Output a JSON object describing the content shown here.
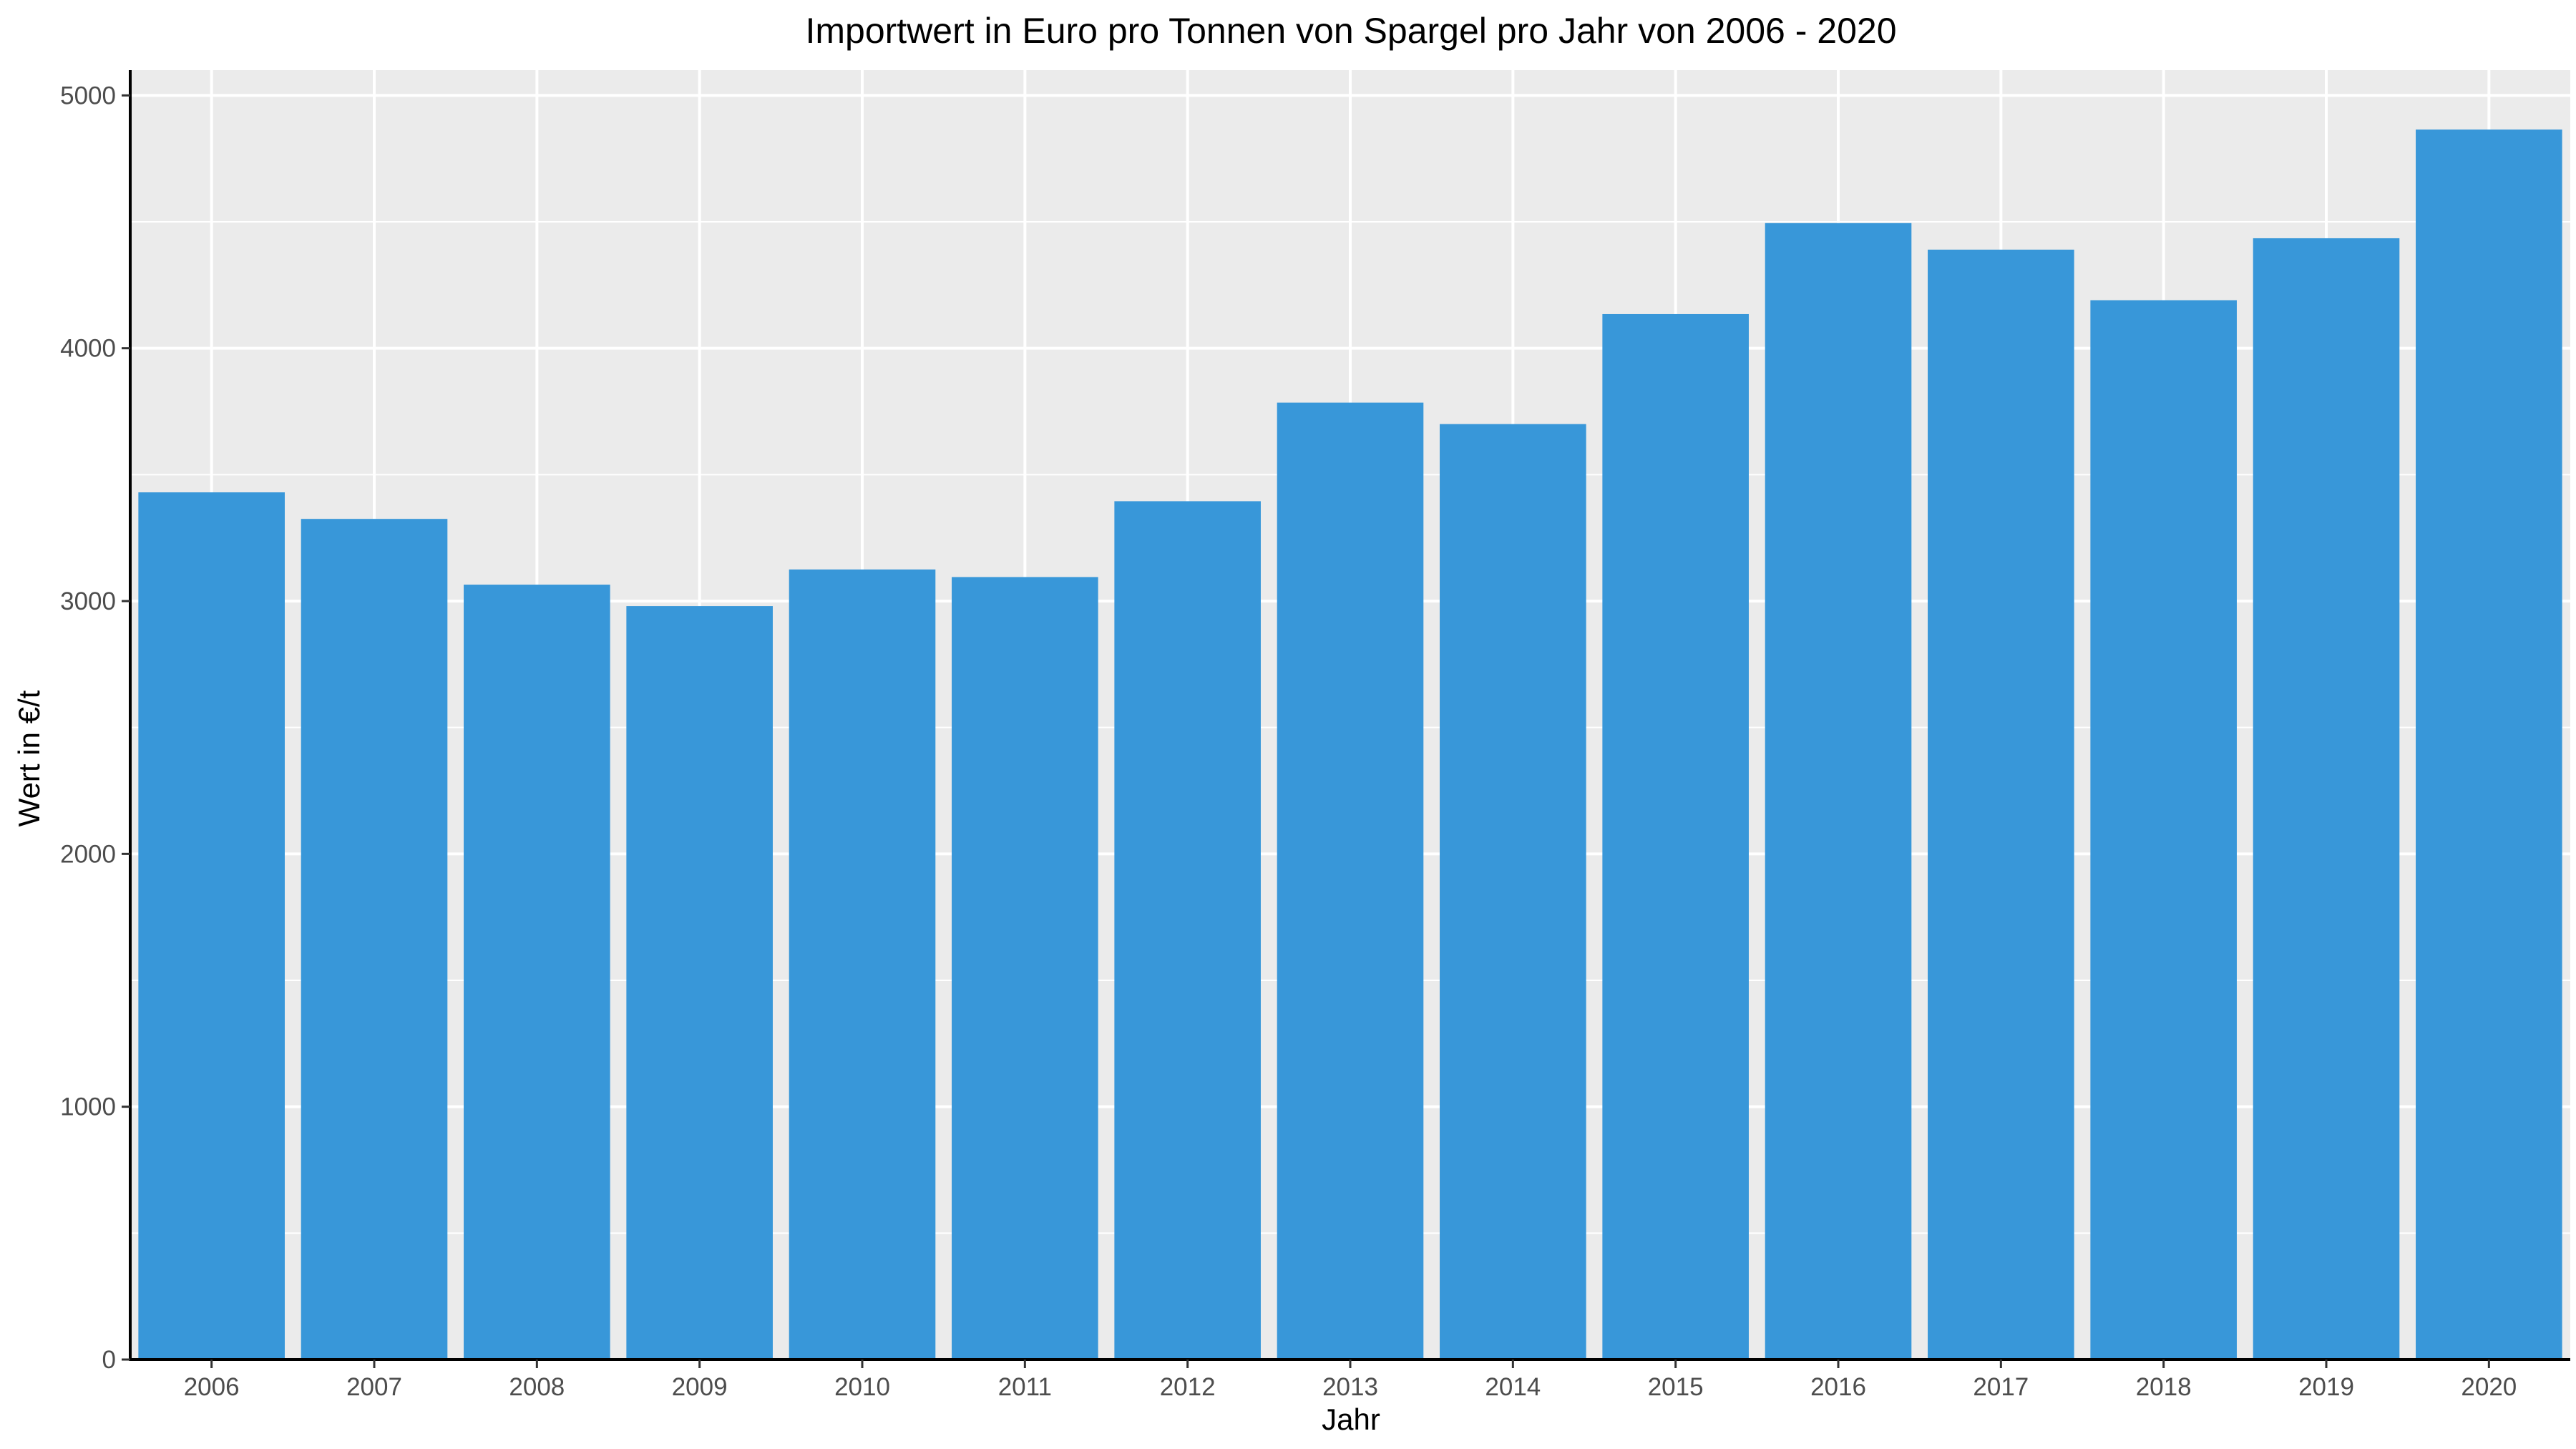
{
  "chart_data": {
    "type": "bar",
    "title": "Importwert in Euro pro Tonnen von Spargel pro Jahr von 2006 - 2020",
    "xlabel": "Jahr",
    "ylabel": "Wert in €/t",
    "categories": [
      "2006",
      "2007",
      "2008",
      "2009",
      "2010",
      "2011",
      "2012",
      "2013",
      "2014",
      "2015",
      "2016",
      "2017",
      "2018",
      "2019",
      "2020"
    ],
    "values": [
      3430,
      3325,
      3065,
      2980,
      3125,
      3095,
      3395,
      3785,
      3700,
      4135,
      4495,
      4390,
      4190,
      4435,
      4865
    ],
    "ylim": [
      0,
      5100
    ],
    "yticks": [
      0,
      1000,
      2000,
      3000,
      4000,
      5000
    ],
    "grid": true,
    "bar_color": "#3897D9",
    "panel_background": "#EBEBEB",
    "grid_color": "#FFFFFF"
  }
}
